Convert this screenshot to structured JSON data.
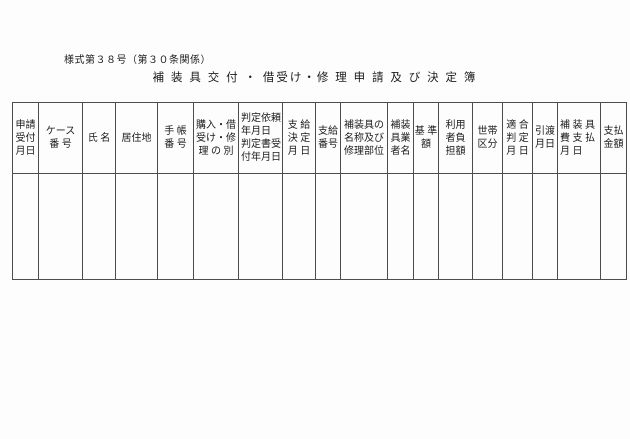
{
  "form": {
    "number_label": "様式第３８号（第３０条関係）",
    "title": "補 装 具 交 付 ・ 借受け・修 理 申 請 及 び 決 定 簿"
  },
  "table": {
    "columns": [
      {
        "lines": [
          "申請",
          "受付",
          "月日"
        ]
      },
      {
        "lines": [
          "ケース",
          "番 号"
        ]
      },
      {
        "lines": [
          "氏 名"
        ]
      },
      {
        "lines": [
          "居住地"
        ]
      },
      {
        "lines": [
          "手 帳",
          "番 号"
        ]
      },
      {
        "lines": [
          "購入・借",
          "受け・修",
          "理 の 別"
        ]
      },
      {
        "lines": [
          "判定依頼",
          "年月日",
          "判定書受",
          "付年月日"
        ]
      },
      {
        "lines": [
          "支 給",
          "決 定",
          "月 日"
        ]
      },
      {
        "lines": [
          "支給",
          "番号"
        ]
      },
      {
        "lines": [
          "補装具の",
          "名称及び",
          "修理部位"
        ]
      },
      {
        "lines": [
          "補装",
          "具業",
          "者名"
        ]
      },
      {
        "lines": [
          "基 準",
          "額"
        ]
      },
      {
        "lines": [
          "利用",
          "者負",
          "担額"
        ]
      },
      {
        "lines": [
          "世帯",
          "区分"
        ]
      },
      {
        "lines": [
          "適 合",
          "判 定",
          "月 日"
        ]
      },
      {
        "lines": [
          "引渡",
          "月日"
        ]
      },
      {
        "lines": [
          "補 装 具",
          "費 支 払",
          "月 日"
        ]
      },
      {
        "lines": [
          "支払",
          "金額"
        ]
      }
    ],
    "rows": [
      [
        "",
        "",
        "",
        "",
        "",
        "",
        "",
        "",
        "",
        "",
        "",
        "",
        "",
        "",
        "",
        "",
        "",
        ""
      ]
    ]
  }
}
